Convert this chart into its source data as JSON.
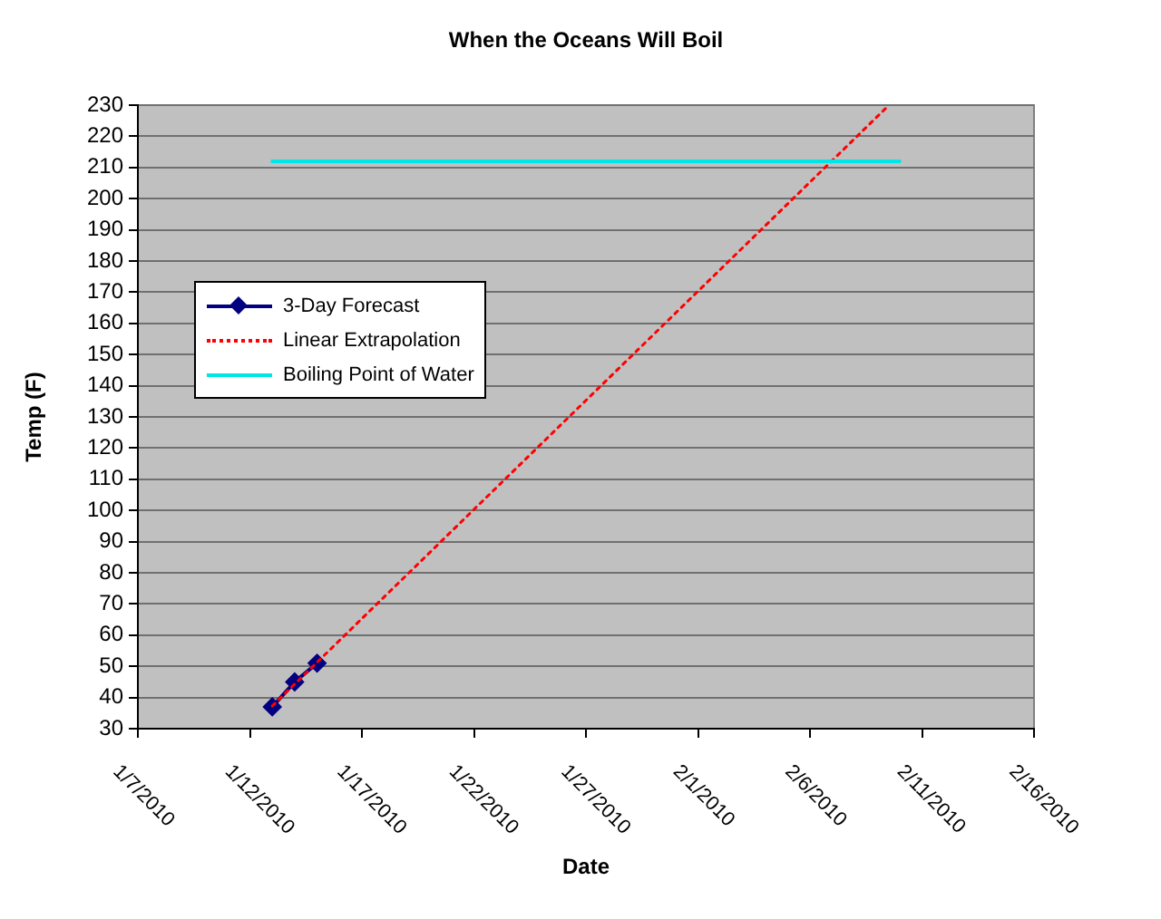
{
  "chart_data": {
    "type": "line",
    "title": "When the Oceans Will Boil",
    "xlabel": "Date",
    "ylabel": "Temp (F)",
    "xlim": [
      "2010-01-07",
      "2010-02-16"
    ],
    "xticks": [
      {
        "value": "2010-01-07",
        "label": "1/7/2010"
      },
      {
        "value": "2010-01-12",
        "label": "1/12/2010"
      },
      {
        "value": "2010-01-17",
        "label": "1/17/2010"
      },
      {
        "value": "2010-01-22",
        "label": "1/22/2010"
      },
      {
        "value": "2010-01-27",
        "label": "1/27/2010"
      },
      {
        "value": "2010-02-01",
        "label": "2/1/2010"
      },
      {
        "value": "2010-02-06",
        "label": "2/6/2010"
      },
      {
        "value": "2010-02-11",
        "label": "2/11/2010"
      },
      {
        "value": "2010-02-16",
        "label": "2/16/2010"
      }
    ],
    "ylim": [
      30,
      230
    ],
    "yticks": [
      30,
      40,
      50,
      60,
      70,
      80,
      90,
      100,
      110,
      120,
      130,
      140,
      150,
      160,
      170,
      180,
      190,
      200,
      210,
      220,
      230
    ],
    "grid": "y",
    "legend": "left",
    "series": [
      {
        "name": "3-Day Forecast",
        "color": "#000080",
        "x": [
          "2010-01-13",
          "2010-01-14",
          "2010-01-15"
        ],
        "values": [
          37,
          45,
          51
        ],
        "marker": "diamond",
        "line_style": "solid"
      },
      {
        "name": "Linear Extrapolation",
        "color": "#ff0000",
        "x": [
          "2010-01-13",
          "2010-02-09T12:00"
        ],
        "values": [
          37.3,
          229.8
        ],
        "marker": "none",
        "line_style": "dotted"
      },
      {
        "name": "Boiling Point of Water",
        "color": "#00e6e6",
        "x": [
          "2010-01-13",
          "2010-02-10"
        ],
        "values": [
          212,
          212
        ],
        "marker": "none",
        "line_style": "solid"
      }
    ]
  }
}
